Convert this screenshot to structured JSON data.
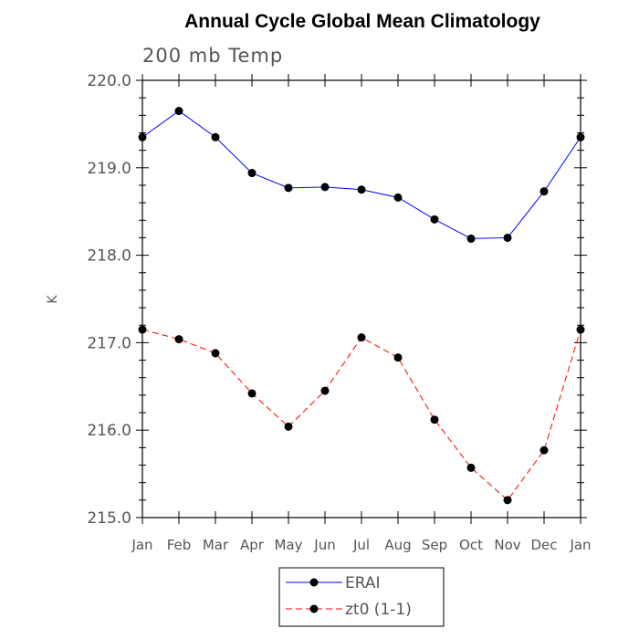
{
  "chart_data": {
    "type": "line",
    "title": "Annual Cycle Global Mean Climatology",
    "subtitle": "200 mb Temp",
    "xlabel": "",
    "ylabel": "K",
    "categories": [
      "Jan",
      "Feb",
      "Mar",
      "Apr",
      "May",
      "Jun",
      "Jul",
      "Aug",
      "Sep",
      "Oct",
      "Nov",
      "Dec",
      "Jan"
    ],
    "ylim": [
      215.0,
      220.0
    ],
    "yticks": [
      "215.0",
      "216.0",
      "217.0",
      "218.0",
      "219.0",
      "220.0"
    ],
    "legend_position": "bottom-center",
    "grid": false,
    "series": [
      {
        "name": "ERAI",
        "color": "#0000ff",
        "dashed": false,
        "values": [
          219.35,
          219.65,
          219.35,
          218.94,
          218.77,
          218.78,
          218.75,
          218.66,
          218.41,
          218.19,
          218.2,
          218.73,
          219.35
        ]
      },
      {
        "name": "zt0 (1-1)",
        "color": "#ff0000",
        "dashed": true,
        "values": [
          217.15,
          217.04,
          216.88,
          216.42,
          216.04,
          216.45,
          217.06,
          216.83,
          216.12,
          215.57,
          215.2,
          215.77,
          217.15
        ]
      }
    ]
  }
}
